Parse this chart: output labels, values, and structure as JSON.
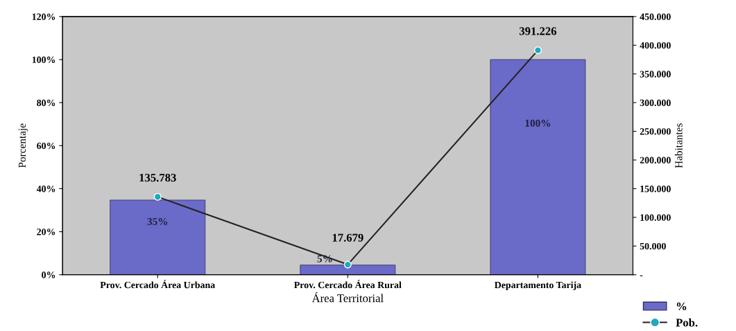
{
  "chart_data": {
    "type": "bar",
    "xlabel": "Área Territorial",
    "ylabel": "Porcentaje",
    "y2label": "Habitantes",
    "categories": [
      "Prov. Cercado Área Urbana",
      "Prov. Cercado Área Rural",
      "Departamento Tarija"
    ],
    "series": [
      {
        "name": "%",
        "color": "#6a6ac8",
        "values": [
          34.7,
          4.5,
          100
        ],
        "value_labels": [
          "35%",
          "5%",
          "100%"
        ]
      },
      {
        "name": "Pob.",
        "type": "line",
        "axis": "y2",
        "color": "#22a8bb",
        "values": [
          135783,
          17679,
          391226
        ],
        "value_labels": [
          "135.783",
          "17.679",
          "391.226"
        ],
        "marker": "circle"
      }
    ],
    "ylim": [
      0,
      120
    ],
    "yticks": [
      {
        "value": 0,
        "label": "0%"
      },
      {
        "value": 20,
        "label": "20%"
      },
      {
        "value": 40,
        "label": "40%"
      },
      {
        "value": 60,
        "label": "60%"
      },
      {
        "value": 80,
        "label": "80%"
      },
      {
        "value": 100,
        "label": "100%"
      },
      {
        "value": 120,
        "label": "120%"
      }
    ],
    "y2lim": [
      0,
      450000
    ],
    "y2ticks": [
      {
        "value": 0,
        "label": "-"
      },
      {
        "value": 50000,
        "label": "50.000"
      },
      {
        "value": 100000,
        "label": "100.000"
      },
      {
        "value": 150000,
        "label": "150.000"
      },
      {
        "value": 200000,
        "label": "200.000"
      },
      {
        "value": 250000,
        "label": "250.000"
      },
      {
        "value": 300000,
        "label": "300.000"
      },
      {
        "value": 350000,
        "label": "350.000"
      },
      {
        "value": 400000,
        "label": "400.000"
      },
      {
        "value": 450000,
        "label": "450.000"
      }
    ],
    "grid": false,
    "legend": "bottom right"
  }
}
